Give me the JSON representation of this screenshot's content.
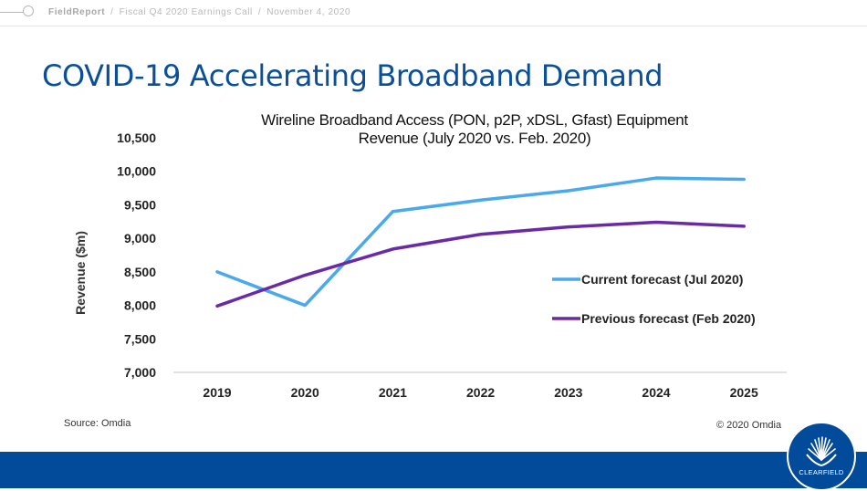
{
  "header": {
    "brand": "FieldReport",
    "separator": "/",
    "event": "Fiscal Q4 2020 Earnings Call",
    "date": "November 4, 2020"
  },
  "slide": {
    "title": "COVID-19 Accelerating Broadband Demand",
    "source": "Source: Omdia",
    "copyright": "© 2020 Omdia",
    "logo_text": "CLEARFIELD"
  },
  "colors": {
    "brand_blue": "#024a9a",
    "title_blue": "#0a4f9c",
    "current_series": "#4aa8ec",
    "previous_series": "#6a2aa6"
  },
  "chart_data": {
    "type": "line",
    "title_line1": "Wireline Broadband Access (PON, p2P, xDSL, Gfast) Equipment",
    "title_line2": "Revenue (July 2020 vs. Feb. 2020)",
    "xlabel": "",
    "ylabel": "Revenue ($m)",
    "categories": [
      "2019",
      "2020",
      "2021",
      "2022",
      "2023",
      "2024",
      "2025"
    ],
    "ylim": [
      7000,
      10500
    ],
    "yticks": [
      7000,
      7500,
      8000,
      8500,
      9000,
      9500,
      10000,
      10500
    ],
    "ytick_labels": [
      "7,000",
      "7,500",
      "8,000",
      "8,500",
      "9,000",
      "9,500",
      "10,000",
      "10,500"
    ],
    "grid": false,
    "legend_position": "right-middle",
    "series": [
      {
        "name": "Current forecast (Jul 2020)",
        "color": "#4aa8ec",
        "values": [
          8500,
          8000,
          9400,
          9570,
          9710,
          9900,
          9880
        ]
      },
      {
        "name": "Previous forecast (Feb 2020)",
        "color": "#6a2aa6",
        "values": [
          7990,
          8450,
          8840,
          9060,
          9170,
          9240,
          9180
        ]
      }
    ]
  }
}
